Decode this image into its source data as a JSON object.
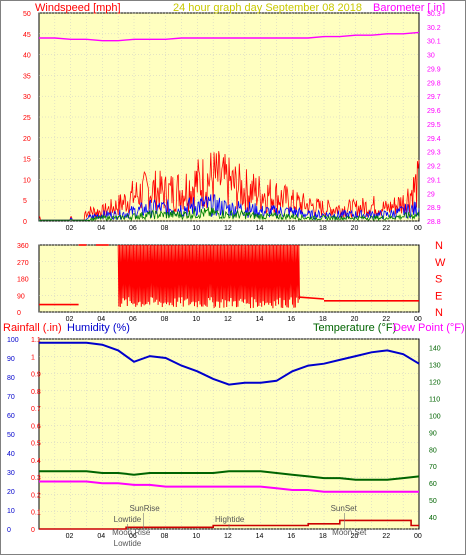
{
  "header": {
    "left_title": "Windspeed [mph]",
    "center_title": "24 hour graph day   September 08 2018",
    "right_title": "Barometer [.in]"
  },
  "colors": {
    "plot_bg": "#ffffc0",
    "grid": "#c8c8c8",
    "axis_red": "#ff0000",
    "wind_gust": "#ff0000",
    "wind_avg": "#0000ff",
    "wind_low": "#008000",
    "barometer": "#ff00ff",
    "humidity": "#0000cc",
    "temperature": "#006400",
    "dewpoint": "#ff00ff",
    "rain": "#cc0000",
    "title_yellow": "#c8c800"
  },
  "chart_data": [
    {
      "type": "line",
      "name": "wind-barometer",
      "xlabel": "",
      "x_ticks": [
        "02",
        "04",
        "06",
        "08",
        "10",
        "12",
        "14",
        "16",
        "18",
        "20",
        "22",
        "00"
      ],
      "xlim": [
        0,
        24
      ],
      "y_left_label": "Windspeed [mph]",
      "y_left_ticks": [
        0,
        5,
        10,
        15,
        20,
        25,
        30,
        35,
        40,
        45,
        50
      ],
      "y_left_lim": [
        0,
        50
      ],
      "y_right_label": "Barometer [.in]",
      "y_right_ticks": [
        "28.8",
        "28.9",
        "29",
        "29.1",
        "29.2",
        "29.3",
        "29.4",
        "29.5",
        "29.6",
        "29.7",
        "29.8",
        "29.9",
        "30",
        "30.1",
        "30.2",
        "30.3"
      ],
      "y_right_lim": [
        28.8,
        30.3
      ],
      "barometer": {
        "x": [
          0,
          1,
          2,
          3,
          4,
          5,
          6,
          7,
          8,
          9,
          10,
          11,
          12,
          13,
          14,
          15,
          16,
          17,
          18,
          19,
          20,
          21,
          22,
          23,
          24
        ],
        "values": [
          30.12,
          30.12,
          30.11,
          30.11,
          30.1,
          30.1,
          30.11,
          30.11,
          30.11,
          30.12,
          30.12,
          30.12,
          30.12,
          30.12,
          30.12,
          30.12,
          30.12,
          30.12,
          30.13,
          30.13,
          30.14,
          30.14,
          30.15,
          30.15,
          30.16
        ]
      },
      "wind_gust_envelope": {
        "x": [
          0,
          2.5,
          3,
          4,
          5,
          6,
          7,
          8,
          9,
          10,
          11,
          12,
          13,
          14,
          15,
          16,
          17,
          18,
          19,
          20,
          21,
          22,
          23,
          24
        ],
        "values": [
          1,
          1,
          3,
          3,
          5,
          8,
          10,
          9,
          10,
          12,
          14,
          12,
          10,
          9,
          8,
          6,
          5,
          4,
          4,
          4,
          5,
          4,
          6,
          12
        ]
      },
      "wind_avg_envelope": {
        "x": [
          0,
          3,
          4,
          5,
          6,
          7,
          8,
          9,
          10,
          11,
          12,
          13,
          14,
          15,
          16,
          17,
          18,
          19,
          20,
          21,
          22,
          23,
          24
        ],
        "values": [
          0,
          1,
          2,
          2,
          3,
          4,
          4,
          4,
          5,
          5,
          4,
          4,
          3,
          3,
          3,
          2,
          2,
          2,
          2,
          2,
          2,
          3,
          4
        ]
      }
    },
    {
      "type": "scatter",
      "name": "wind-direction",
      "x_ticks": [
        "02",
        "04",
        "06",
        "08",
        "10",
        "12",
        "14",
        "16",
        "18",
        "20",
        "22",
        "00"
      ],
      "xlim": [
        0,
        24
      ],
      "y_left_ticks": [
        0,
        90,
        180,
        270,
        360
      ],
      "y_left_lim": [
        0,
        360
      ],
      "y_right_labels": [
        "N",
        "W",
        "S",
        "E",
        "N"
      ],
      "segments": [
        {
          "x": [
            0,
            2.5
          ],
          "values": [
            40,
            40
          ]
        },
        {
          "x": [
            2.5,
            3.0
          ],
          "values": [
            360,
            360
          ]
        },
        {
          "x": [
            3.6,
            4.4
          ],
          "values": [
            360,
            360
          ]
        },
        {
          "x": [
            16.4,
            18.0
          ],
          "values": [
            80,
            70
          ]
        },
        {
          "x": [
            18.0,
            24.0
          ],
          "values": [
            60,
            60
          ]
        }
      ],
      "noisy_range": {
        "x": [
          5.0,
          16.5
        ],
        "min": 20,
        "max": 360
      }
    },
    {
      "type": "line",
      "name": "humidity-temp-rain",
      "x_ticks": [
        "02",
        "04",
        "06",
        "08",
        "10",
        "12",
        "14",
        "16",
        "18",
        "20",
        "22",
        "00"
      ],
      "xlim": [
        0,
        24
      ],
      "rain_ticks": [
        "0",
        "0.1",
        "0.2",
        "0.3",
        "0.4",
        "0.5",
        "0.6",
        "0.7",
        "0.8",
        "0.9",
        "1",
        "1.1"
      ],
      "rain_lim": [
        0,
        1.1
      ],
      "humidity_ticks": [
        0,
        10,
        20,
        30,
        40,
        50,
        60,
        70,
        80,
        90,
        100
      ],
      "humidity_lim": [
        0,
        100
      ],
      "temp_ticks": [
        40,
        50,
        60,
        70,
        80,
        90,
        100,
        110,
        120,
        130,
        140
      ],
      "temp_lim": [
        33,
        145
      ],
      "labels": {
        "rainfall": "Rainfall (.in)",
        "humidity": "Humidity (%)",
        "temperature": "Temperature (°F)",
        "dewpoint": "Dew Point (°F)"
      },
      "humidity": {
        "x": [
          0,
          1,
          2,
          3,
          4,
          5,
          6,
          7,
          8,
          9,
          10,
          11,
          12,
          13,
          14,
          15,
          16,
          17,
          18,
          19,
          20,
          21,
          22,
          23,
          24
        ],
        "values": [
          98,
          98,
          98,
          98,
          97,
          94,
          88,
          91,
          90,
          86,
          83,
          79,
          76,
          77,
          77,
          78,
          83,
          86,
          87,
          89,
          91,
          93,
          94,
          92,
          87
        ]
      },
      "temperature": {
        "x": [
          0,
          1,
          2,
          3,
          4,
          5,
          6,
          7,
          8,
          9,
          10,
          11,
          12,
          13,
          14,
          15,
          16,
          17,
          18,
          19,
          20,
          21,
          22,
          23,
          24
        ],
        "values": [
          67,
          67,
          67,
          67,
          66,
          66,
          65,
          66,
          66,
          66,
          66,
          66,
          67,
          67,
          67,
          66,
          65,
          64,
          63,
          63,
          62,
          62,
          62,
          63,
          64
        ]
      },
      "dewpoint": {
        "x": [
          0,
          1,
          2,
          3,
          4,
          5,
          6,
          7,
          8,
          9,
          10,
          11,
          12,
          13,
          14,
          15,
          16,
          17,
          18,
          19,
          20,
          21,
          22,
          23,
          24
        ],
        "values": [
          61,
          61,
          61,
          61,
          60,
          60,
          59,
          59,
          58,
          58,
          58,
          58,
          58,
          58,
          58,
          57,
          56,
          56,
          55,
          55,
          55,
          55,
          55,
          55,
          55
        ]
      },
      "rain": {
        "x": [
          0,
          5.5,
          5.5,
          11.0,
          11.0,
          17.0,
          17.0,
          19.0,
          19.0,
          23.5,
          23.5,
          24
        ],
        "values": [
          0.0,
          0.0,
          0.01,
          0.01,
          0.02,
          0.02,
          0.03,
          0.03,
          0.05,
          0.05,
          0.02,
          0.02
        ]
      },
      "annotations": [
        {
          "text": "SunRise",
          "x": 6.6,
          "level": "high"
        },
        {
          "text": "Lowtide",
          "x": 5.6,
          "level": "mid"
        },
        {
          "text": "Moon Rise",
          "x": 5.5,
          "level": "low"
        },
        {
          "text": "Lowtide",
          "x": 5.6,
          "level": "bottom"
        },
        {
          "text": "Hightide",
          "x": 12.0,
          "level": "mid"
        },
        {
          "text": "SunSet",
          "x": 19.3,
          "level": "high"
        },
        {
          "text": "Moon Set",
          "x": 19.4,
          "level": "low"
        }
      ]
    }
  ]
}
